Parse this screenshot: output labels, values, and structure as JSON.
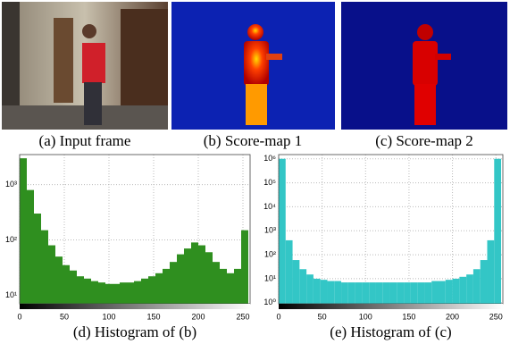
{
  "panels": [
    {
      "caption": "(a) Input frame"
    },
    {
      "caption": "(b) Score-map 1"
    },
    {
      "caption": "(c) Score-map 2"
    }
  ],
  "chart_data": [
    {
      "type": "histogram",
      "title": "(d) Histogram of (b)",
      "color": "#2f8f1f",
      "log": true,
      "grid": true,
      "bins": [
        0,
        8,
        16,
        24,
        32,
        40,
        48,
        56,
        64,
        72,
        80,
        88,
        96,
        104,
        112,
        120,
        128,
        136,
        144,
        152,
        160,
        168,
        176,
        184,
        192,
        200,
        208,
        216,
        224,
        232,
        240,
        248,
        256
      ],
      "values": [
        3000,
        800,
        300,
        150,
        80,
        50,
        35,
        28,
        22,
        20,
        18,
        17,
        16,
        16,
        17,
        17,
        18,
        20,
        22,
        25,
        30,
        40,
        55,
        70,
        90,
        80,
        60,
        40,
        30,
        25,
        30,
        150
      ],
      "xlim": [
        0,
        258
      ],
      "xticks": [
        0,
        50,
        100,
        150,
        200,
        250
      ],
      "ylim": [
        7,
        3500
      ],
      "yticks": [
        {
          "value": 10,
          "label": "10¹"
        },
        {
          "value": 100,
          "label": "10²"
        },
        {
          "value": 1000,
          "label": "10³"
        }
      ]
    },
    {
      "type": "histogram",
      "title": "(e) Histogram of (c)",
      "color": "#33c6c6",
      "log": true,
      "grid": true,
      "bins": [
        0,
        8,
        16,
        24,
        32,
        40,
        48,
        56,
        64,
        72,
        80,
        88,
        96,
        104,
        112,
        120,
        128,
        136,
        144,
        152,
        160,
        168,
        176,
        184,
        192,
        200,
        208,
        216,
        224,
        232,
        240,
        248,
        256
      ],
      "values": [
        1000000,
        400,
        60,
        25,
        15,
        10,
        9,
        8,
        8,
        7,
        7,
        7,
        7,
        7,
        7,
        7,
        7,
        7,
        7,
        7,
        7,
        7,
        8,
        8,
        9,
        10,
        12,
        15,
        25,
        60,
        400,
        1000000
      ],
      "xlim": [
        0,
        258
      ],
      "xticks": [
        0,
        50,
        100,
        150,
        200,
        250
      ],
      "ylim": [
        0.9,
        1500000
      ],
      "yticks": [
        {
          "value": 1,
          "label": "10⁰"
        },
        {
          "value": 10,
          "label": "10¹"
        },
        {
          "value": 100,
          "label": "10²"
        },
        {
          "value": 1000,
          "label": "10³"
        },
        {
          "value": 10000,
          "label": "10⁴"
        },
        {
          "value": 100000,
          "label": "10⁵"
        },
        {
          "value": 1000000,
          "label": "10⁶"
        }
      ]
    }
  ]
}
